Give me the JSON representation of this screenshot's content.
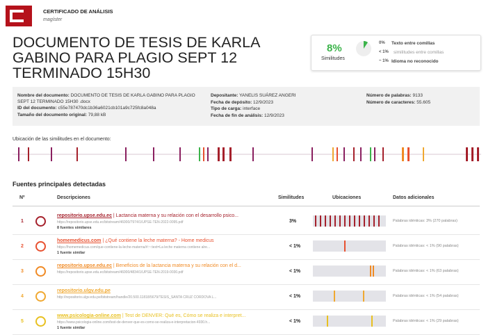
{
  "header": {
    "label": "CERTIFICADO DE ANÁLISIS",
    "sub": "magíster"
  },
  "title": [
    "DOCUMENTO DE TESIS DE KARLA",
    "GABINO PARA PLAGIO SEPT 12",
    "TERMINADO 15H30"
  ],
  "summary": {
    "percent": "8%",
    "label": "Similitudes",
    "items": [
      {
        "value": "0%",
        "text": "Texto entre comillas"
      },
      {
        "value": "< 1%",
        "text": "similitudes entre comillas"
      },
      {
        "value": "~ 1%",
        "text": "Idioma no reconocido"
      }
    ]
  },
  "info": {
    "col1": [
      {
        "key": "Nombre del documento:",
        "value": "DOCUMENTO DE TESIS DE KARLA GABINO PARA PLAGIO SEPT 12 TERMINADO 15H30 .docx"
      },
      {
        "key": "ID del documento:",
        "value": "c55e787470dc1b36a6021cb101a9c725fc8a048a"
      },
      {
        "key": "Tamaño del documento original:",
        "value": "79,88 kB"
      }
    ],
    "col2": [
      {
        "key": "Depositante:",
        "value": "YANELIS SUÁREZ ANGERI"
      },
      {
        "key": "Fecha de depósito:",
        "value": "12/9/2023"
      },
      {
        "key": "Tipo de carga:",
        "value": "interface"
      },
      {
        "key": "Fecha de fin de análisis:",
        "value": "12/9/2023"
      }
    ],
    "col3": [
      {
        "key": "Número de palabras:",
        "value": "9133"
      },
      {
        "key": "Número de caracteres:",
        "value": "55.605"
      }
    ]
  },
  "locations_label": "Ubicación de las similitudes en el documento:",
  "sources": {
    "heading": "Fuentes principales detectadas",
    "columns": [
      "Nº",
      "Descripciones",
      "Similitudes",
      "Ubicaciones",
      "Datos adicionales"
    ],
    "rows": [
      {
        "n": "1",
        "site": "repositorio.upse.edu.ec",
        "desc": " | Lactancia materna y su relación con el desarrollo psico...",
        "url": "https://repositorio.upse.edu.ec/bitstream/46000/7974/1/UPSE-TEN-2022-0095.pdf",
        "note": "8 fuentes similares",
        "sim": "3%",
        "extra": "Palabras idénticas: 3% (270 palabras)"
      },
      {
        "n": "2",
        "site": "homemedicus.com",
        "desc": " | ¿Qué contiene la leche materna? - Home medicus",
        "url": "https://homemedicus.com/que-contiene-la-leche-materna/#:~:text=La leche materna contiene alre...",
        "note": "1 fuente similar",
        "sim": "< 1%",
        "extra": "Palabras idénticas: < 1% (90 palabras)"
      },
      {
        "n": "3",
        "site": "repositorio.upse.edu.ec",
        "desc": " | Beneficios de la lactancia materna y su relación con el d...",
        "url": "https://repositorio.upse.edu.ec/bitstream/46000/4834/1/UPSE-TEN-2019-0030.pdf",
        "sim": "< 1%",
        "extra": "Palabras idénticas: < 1% (63 palabras)"
      },
      {
        "n": "4",
        "site": "repositorio.ulgv.edu.pe",
        "desc": "",
        "url": "http://repositorio.ulgv.edu.pe/bitstream/handle/20.500.11818/5679/TESIS_SANTA CRUZ CORDOVA L...",
        "sim": "< 1%",
        "extra": "Palabras idénticas: < 1% (54 palabras)"
      },
      {
        "n": "5",
        "site": "www.psicologia-online.com",
        "desc": " | Test de DENVER: Qué es, Cómo se realiza e interpret...",
        "url": "https://www.psicologia-online.com/test-de-denver-que-es-como-se-realiza-e-interpretacion-4930.h...",
        "note": "1 fuente similar",
        "sim": "< 1%",
        "extra": "Palabras idénticas: < 1% (29 palabras)"
      }
    ]
  }
}
